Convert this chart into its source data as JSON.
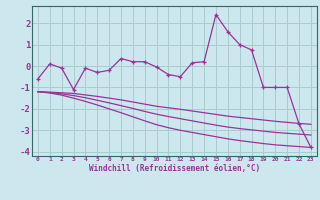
{
  "xlabel": "Windchill (Refroidissement éolien,°C)",
  "bg_color": "#cce8ee",
  "grid_color": "#aacccc",
  "line_color": "#993399",
  "spine_color": "#336666",
  "x": [
    0,
    1,
    2,
    3,
    4,
    5,
    6,
    7,
    8,
    9,
    10,
    11,
    12,
    13,
    14,
    15,
    16,
    17,
    18,
    19,
    20,
    21,
    22,
    23
  ],
  "line1": [
    -0.6,
    0.1,
    -0.1,
    -1.1,
    -0.1,
    -0.3,
    -0.2,
    0.35,
    0.2,
    0.2,
    -0.05,
    -0.4,
    -0.5,
    0.15,
    0.2,
    2.4,
    1.6,
    1.0,
    0.75,
    -1.0,
    -1.0,
    -1.0,
    -2.7,
    -3.8
  ],
  "line2": [
    -1.2,
    -1.22,
    -1.25,
    -1.28,
    -1.35,
    -1.42,
    -1.5,
    -1.58,
    -1.68,
    -1.78,
    -1.88,
    -1.95,
    -2.02,
    -2.1,
    -2.18,
    -2.26,
    -2.34,
    -2.4,
    -2.46,
    -2.52,
    -2.58,
    -2.63,
    -2.68,
    -2.72
  ],
  "line3": [
    -1.2,
    -1.24,
    -1.3,
    -1.38,
    -1.48,
    -1.6,
    -1.72,
    -1.85,
    -1.98,
    -2.12,
    -2.25,
    -2.36,
    -2.46,
    -2.56,
    -2.66,
    -2.76,
    -2.85,
    -2.92,
    -2.98,
    -3.04,
    -3.1,
    -3.14,
    -3.18,
    -3.22
  ],
  "line4": [
    -1.2,
    -1.26,
    -1.36,
    -1.5,
    -1.65,
    -1.82,
    -2.0,
    -2.18,
    -2.37,
    -2.56,
    -2.74,
    -2.88,
    -3.0,
    -3.1,
    -3.2,
    -3.3,
    -3.4,
    -3.48,
    -3.55,
    -3.62,
    -3.68,
    -3.72,
    -3.76,
    -3.8
  ],
  "ylim": [
    -4.2,
    2.8
  ],
  "yticks": [
    -4,
    -3,
    -2,
    -1,
    0,
    1,
    2
  ],
  "xlim": [
    -0.5,
    23.5
  ]
}
